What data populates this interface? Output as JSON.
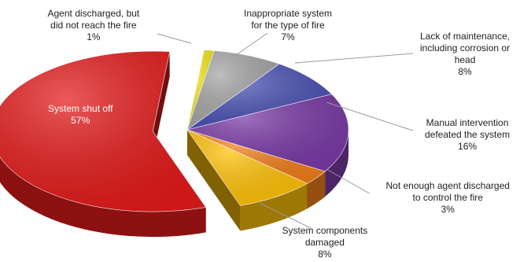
{
  "chart_data": {
    "type": "pie",
    "style": "3d-exploded",
    "slices": [
      {
        "name": "Agent discharged, but did not reach the fire",
        "value": 1,
        "value_label": "1%",
        "color": "#f2e61c",
        "label_lines": [
          "Agent discharged, but",
          "did not reach the fire"
        ]
      },
      {
        "name": "Inappropriate system for the type of fire",
        "value": 7,
        "value_label": "7%",
        "color": "#a6a6a6",
        "label_lines": [
          "Inappropriate system",
          "for the type of fire"
        ]
      },
      {
        "name": "Lack of maintenance, including corrosion or head",
        "value": 8,
        "value_label": "8%",
        "color": "#4b53b3",
        "label_lines": [
          "Lack of maintenance,",
          "including corrosion or",
          "head"
        ]
      },
      {
        "name": "Manual intervention defeated the system",
        "value": 16,
        "value_label": "16%",
        "color": "#7a3aa6",
        "label_lines": [
          "Manual intervention",
          "defeated the system"
        ]
      },
      {
        "name": "Not enough agent discharged to control the fire",
        "value": 3,
        "value_label": "3%",
        "color": "#f07f1c",
        "label_lines": [
          "Not enough agent discharged",
          "to control the fire"
        ]
      },
      {
        "name": "System components damaged",
        "value": 8,
        "value_label": "8%",
        "color": "#ffc107",
        "label_lines": [
          "System components",
          "damaged"
        ]
      },
      {
        "name": "System shut off",
        "value": 57,
        "value_label": "57%",
        "color": "#e31b1b",
        "label_lines": [
          "System shut off"
        ]
      }
    ]
  }
}
